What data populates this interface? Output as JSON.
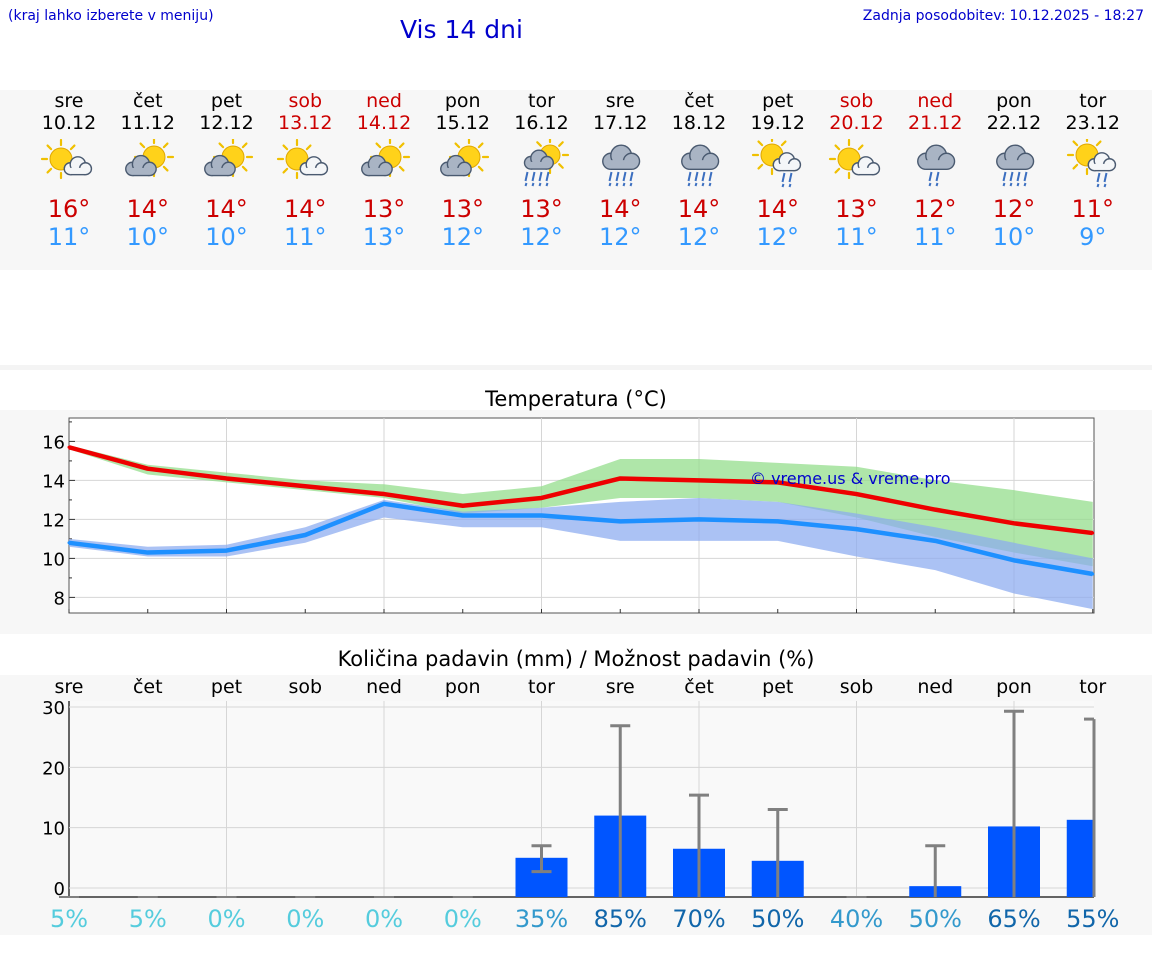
{
  "header": {
    "hint": "(kraj lahko izberete v meniju)",
    "title": "Vis 14 dni",
    "updated_label": "Zadnja posodobitev:",
    "updated_value": "10.12.2025 - 18:27"
  },
  "colors": {
    "title_blue": "#0000cc",
    "max_red": "#cc0000",
    "min_blue": "#3399ff",
    "max_line": "#ee0000",
    "min_line": "#1e90ff",
    "max_band": "#90dd88",
    "min_band": "#8aaaf0",
    "bar": "#0055ff",
    "error_bar": "#808080"
  },
  "days": [
    {
      "name": "sre",
      "date": "10.12",
      "weekend": false,
      "icon": "sun-cloud",
      "max": "16°",
      "min": "11°"
    },
    {
      "name": "čet",
      "date": "11.12",
      "weekend": false,
      "icon": "cloud-sun",
      "max": "14°",
      "min": "10°"
    },
    {
      "name": "pet",
      "date": "12.12",
      "weekend": false,
      "icon": "cloud-sun",
      "max": "14°",
      "min": "10°"
    },
    {
      "name": "sob",
      "date": "13.12",
      "weekend": true,
      "icon": "sun-cloud",
      "max": "14°",
      "min": "11°"
    },
    {
      "name": "ned",
      "date": "14.12",
      "weekend": true,
      "icon": "cloud-sun",
      "max": "13°",
      "min": "13°"
    },
    {
      "name": "pon",
      "date": "15.12",
      "weekend": false,
      "icon": "cloud-sun",
      "max": "13°",
      "min": "12°"
    },
    {
      "name": "tor",
      "date": "16.12",
      "weekend": false,
      "icon": "sun-rain",
      "max": "13°",
      "min": "12°"
    },
    {
      "name": "sre",
      "date": "17.12",
      "weekend": false,
      "icon": "cloud-rain",
      "max": "14°",
      "min": "12°"
    },
    {
      "name": "čet",
      "date": "18.12",
      "weekend": false,
      "icon": "cloud-rain",
      "max": "14°",
      "min": "12°"
    },
    {
      "name": "pet",
      "date": "19.12",
      "weekend": false,
      "icon": "sun-light-rain",
      "max": "14°",
      "min": "12°"
    },
    {
      "name": "sob",
      "date": "20.12",
      "weekend": true,
      "icon": "sun-cloud",
      "max": "13°",
      "min": "11°"
    },
    {
      "name": "ned",
      "date": "21.12",
      "weekend": true,
      "icon": "cloud-light-rain",
      "max": "12°",
      "min": "11°"
    },
    {
      "name": "pon",
      "date": "22.12",
      "weekend": false,
      "icon": "cloud-rain",
      "max": "12°",
      "min": "10°"
    },
    {
      "name": "tor",
      "date": "23.12",
      "weekend": false,
      "icon": "sun-light-rain",
      "max": "11°",
      "min": "9°"
    }
  ],
  "chart_data": [
    {
      "type": "line",
      "title": "Temperatura (°C)",
      "watermark": "© vreme.us & vreme.pro",
      "x": [
        0,
        1,
        2,
        3,
        4,
        5,
        6,
        7,
        8,
        9,
        10,
        11,
        12,
        13
      ],
      "ylim": [
        7.2,
        17.2
      ],
      "yticks": [
        8,
        10,
        12,
        14,
        16
      ],
      "series": [
        {
          "name": "max",
          "values": [
            15.7,
            14.6,
            14.1,
            13.7,
            13.3,
            12.7,
            13.1,
            14.1,
            14.0,
            13.9,
            13.3,
            12.5,
            11.8,
            11.3
          ],
          "band_low": [
            15.6,
            14.3,
            13.9,
            13.5,
            13.1,
            12.3,
            12.6,
            13.1,
            13.1,
            12.9,
            12.1,
            11.1,
            10.3,
            9.6
          ],
          "band_high": [
            15.8,
            14.8,
            14.4,
            14.0,
            13.8,
            13.3,
            13.7,
            15.1,
            15.1,
            14.9,
            14.7,
            14.0,
            13.5,
            12.9
          ]
        },
        {
          "name": "min",
          "values": [
            10.8,
            10.3,
            10.4,
            11.2,
            12.8,
            12.2,
            12.2,
            11.9,
            12.0,
            11.9,
            11.5,
            10.9,
            9.9,
            9.2
          ],
          "band_low": [
            10.6,
            10.1,
            10.1,
            10.8,
            12.1,
            11.6,
            11.6,
            10.9,
            10.9,
            10.9,
            10.1,
            9.4,
            8.2,
            7.4
          ],
          "band_high": [
            11.0,
            10.6,
            10.7,
            11.6,
            13.0,
            12.4,
            12.6,
            12.9,
            13.1,
            12.9,
            12.3,
            11.6,
            10.8,
            10.0
          ]
        }
      ]
    },
    {
      "type": "bar",
      "title": "Količina padavin (mm) / Možnost padavin (%)",
      "categories": [
        "sre",
        "čet",
        "pet",
        "sob",
        "ned",
        "pon",
        "tor",
        "sre",
        "čet",
        "pet",
        "sob",
        "ned",
        "pon",
        "tor"
      ],
      "ylim": [
        -1.5,
        31
      ],
      "yticks": [
        0,
        10,
        20,
        30
      ],
      "values": [
        0,
        0,
        0,
        0,
        0,
        0,
        5,
        12,
        6.5,
        4.5,
        0,
        0.3,
        10.2,
        11.3
      ],
      "err_low": [
        0,
        0,
        0,
        0,
        0,
        0,
        2.7,
        0,
        0,
        0,
        0,
        0,
        0,
        0
      ],
      "err_high": [
        0,
        0,
        0,
        0,
        0,
        0,
        7,
        26.9,
        15.4,
        13,
        0,
        7,
        29.3,
        28
      ],
      "chance": [
        "5%",
        "5%",
        "0%",
        "0%",
        "0%",
        "0%",
        "35%",
        "85%",
        "70%",
        "50%",
        "40%",
        "50%",
        "65%",
        "55%"
      ],
      "chance_colors": [
        "#55ccdd",
        "#55ccdd",
        "#55ccdd",
        "#55ccdd",
        "#55ccdd",
        "#55ccdd",
        "#3399cc",
        "#1166aa",
        "#1166aa",
        "#1166aa",
        "#3399cc",
        "#3399cc",
        "#1166aa",
        "#1166aa"
      ]
    }
  ]
}
